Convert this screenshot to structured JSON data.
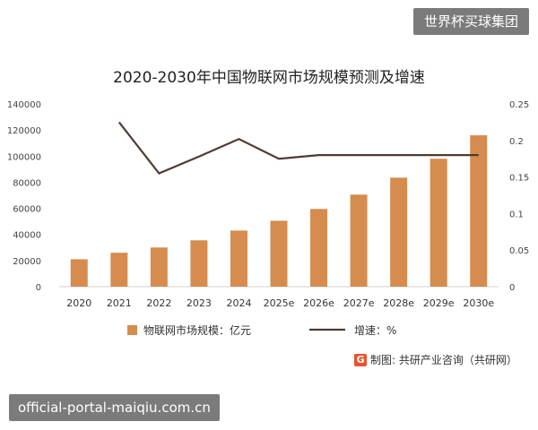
{
  "watermarks": {
    "top": "世界杯买球集团",
    "bottom": "official-portal-maiqiu.com.cn"
  },
  "source": {
    "text": "制图: 共研产业咨询（共研网）",
    "icon": "logo-g-icon"
  },
  "chart_data": {
    "type": "bar+line",
    "title": "2020-2030年中国物联网市场规模预测及增速",
    "categories": [
      "2020",
      "2021",
      "2022",
      "2023",
      "2024",
      "2025e",
      "2026e",
      "2027e",
      "2028e",
      "2029e",
      "2030e"
    ],
    "series": [
      {
        "name": "物联网市场规模：亿元",
        "type": "bar",
        "axis": "left",
        "color": "#d58c4e",
        "values": [
          21000,
          26000,
          30000,
          35500,
          43000,
          50500,
          59500,
          70500,
          83500,
          98000,
          116000
        ]
      },
      {
        "name": "增速：%",
        "type": "line",
        "axis": "right",
        "color": "#4e3b33",
        "values": [
          null,
          0.225,
          0.155,
          0.178,
          0.202,
          0.175,
          0.18,
          0.18,
          0.18,
          0.18,
          0.18
        ]
      }
    ],
    "yleft": {
      "min": 0,
      "max": 140000,
      "ticks": [
        0,
        20000,
        40000,
        60000,
        80000,
        100000,
        120000,
        140000
      ]
    },
    "yright": {
      "min": 0,
      "max": 0.25,
      "ticks": [
        "0",
        "0.05",
        "0.1",
        "0.15",
        "0.2",
        "0.25"
      ]
    },
    "legend": "bottom",
    "grid": false
  }
}
